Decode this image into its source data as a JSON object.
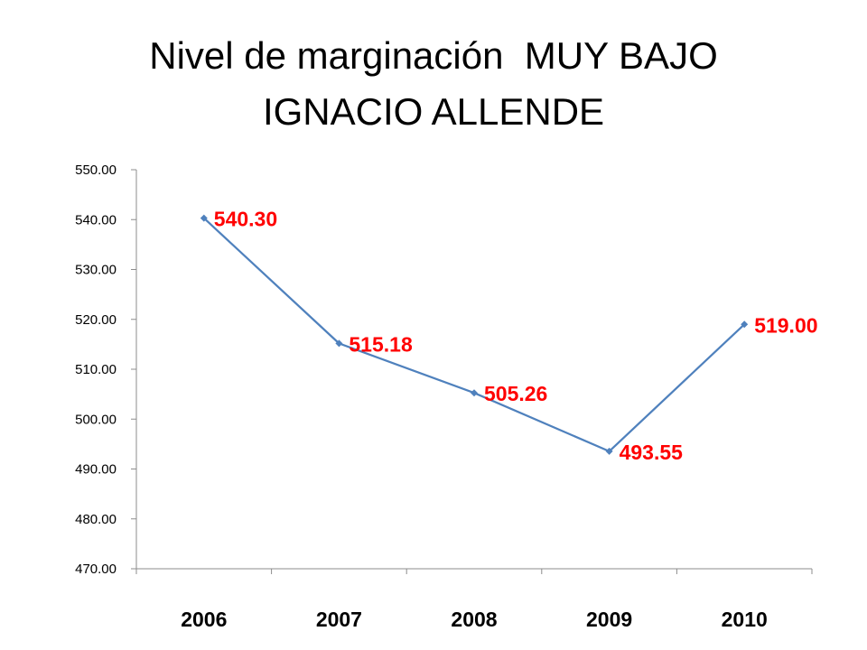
{
  "slide": {
    "title_line_1": "Nivel de marginación  MUY BAJO",
    "title_line_2": "IGNACIO ALLENDE"
  },
  "chart_data": {
    "type": "line",
    "categories": [
      "2006",
      "2007",
      "2008",
      "2009",
      "2010"
    ],
    "series": [
      {
        "values": [
          540.3,
          515.18,
          505.26,
          493.55,
          519.0
        ],
        "data_labels": [
          "540.30",
          "515.18",
          "505.26",
          "493.55",
          "519.00"
        ],
        "color": "#4F81BD",
        "label_color": "#FF0000"
      }
    ],
    "ylim": [
      470,
      550
    ],
    "y_step": 10,
    "y_tick_labels": [
      "470.00",
      "480.00",
      "490.00",
      "500.00",
      "510.00",
      "520.00",
      "530.00",
      "540.00",
      "550.00"
    ],
    "xlabel": "",
    "ylabel": "",
    "grid": false,
    "legend": "none"
  }
}
